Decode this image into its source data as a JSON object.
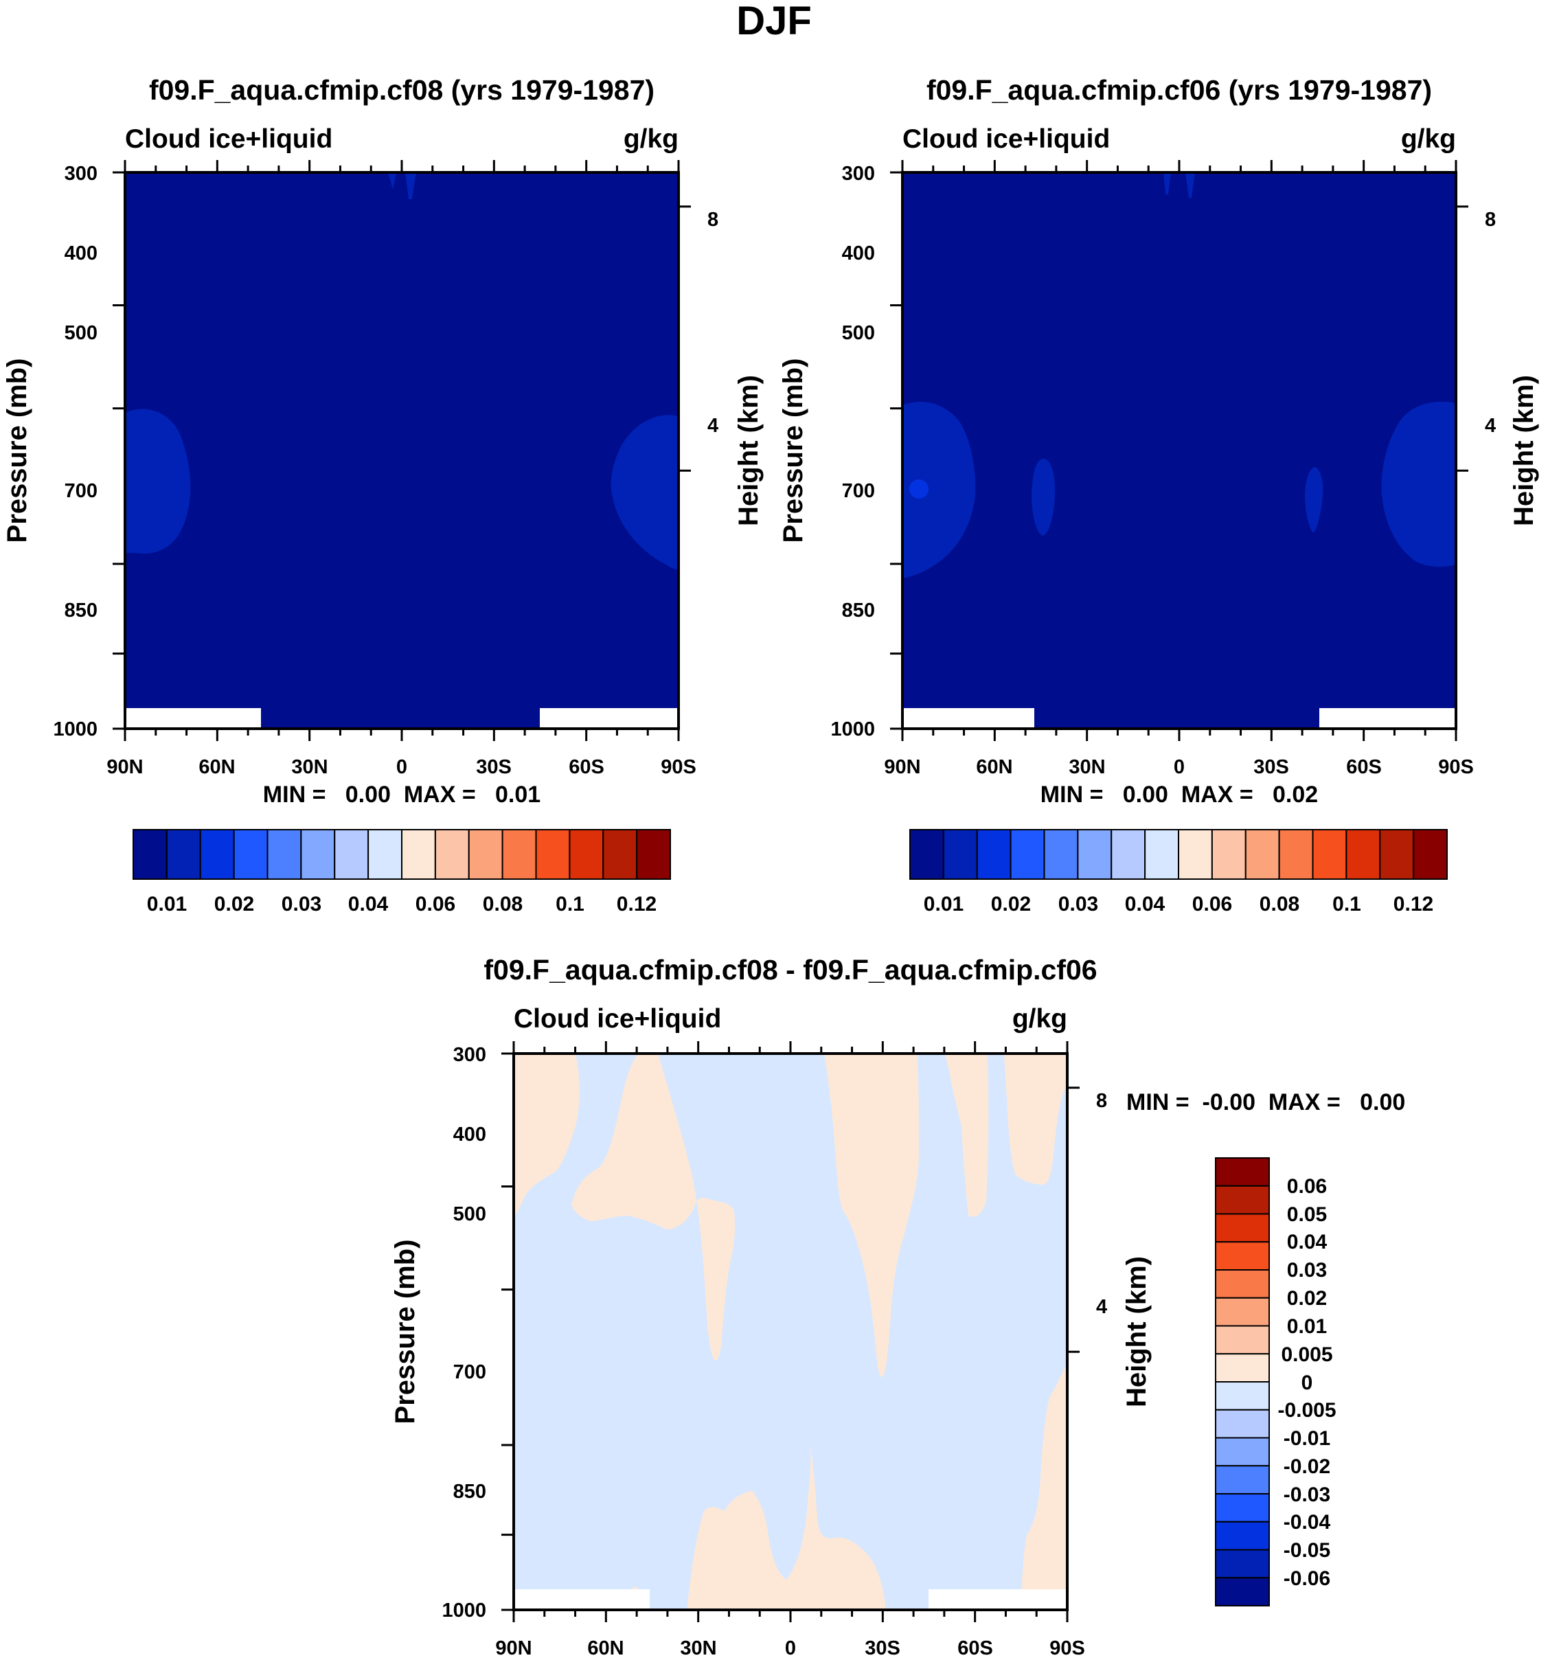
{
  "figure": {
    "title": "DJF"
  },
  "chart_data": [
    {
      "type": "contour",
      "title": "f09.F_aqua.cfmip.cf08 (yrs 1979-1987)",
      "left_string": "Cloud ice+liquid",
      "right_string": "g/kg",
      "ylabel": "Pressure (mb)",
      "ylabel_right": "Height (km)",
      "x_ticks": [
        "90N",
        "60N",
        "30N",
        "0",
        "30S",
        "60S",
        "90S"
      ],
      "y_ticks": [
        "300",
        "400",
        "500",
        "700",
        "850",
        "1000"
      ],
      "y_ticks_right": [
        "8",
        "4"
      ],
      "xlim": [
        -90,
        90
      ],
      "ylim": [
        1000,
        300
      ],
      "min_max": "MIN =   0.00  MAX =   0.01",
      "background_value": 0.005,
      "features": [
        {
          "x": -80,
          "p": 700,
          "value": 0.015
        },
        {
          "x": 80,
          "p": 700,
          "value": 0.015
        }
      ],
      "colorbar_labels": [
        "0.01",
        "0.02",
        "0.03",
        "0.04",
        "0.06",
        "0.08",
        "0.1",
        "0.12"
      ]
    },
    {
      "type": "contour",
      "title": "f09.F_aqua.cfmip.cf06 (yrs 1979-1987)",
      "left_string": "Cloud ice+liquid",
      "right_string": "g/kg",
      "ylabel": "Pressure (mb)",
      "ylabel_right": "Height (km)",
      "x_ticks": [
        "90N",
        "60N",
        "30N",
        "0",
        "30S",
        "60S",
        "90S"
      ],
      "y_ticks": [
        "300",
        "400",
        "500",
        "700",
        "850",
        "1000"
      ],
      "y_ticks_right": [
        "8",
        "4"
      ],
      "xlim": [
        -90,
        90
      ],
      "ylim": [
        1000,
        300
      ],
      "min_max": "MIN =   0.00  MAX =   0.02",
      "background_value": 0.005,
      "features": [
        {
          "x": -80,
          "p": 700,
          "value": 0.015
        },
        {
          "x": -45,
          "p": 700,
          "value": 0.015
        },
        {
          "x": 44,
          "p": 700,
          "value": 0.015
        },
        {
          "x": 80,
          "p": 700,
          "value": 0.015
        }
      ],
      "colorbar_labels": [
        "0.01",
        "0.02",
        "0.03",
        "0.04",
        "0.06",
        "0.08",
        "0.1",
        "0.12"
      ]
    },
    {
      "type": "contour",
      "title": "f09.F_aqua.cfmip.cf08 - f09.F_aqua.cfmip.cf06",
      "left_string": "Cloud ice+liquid",
      "right_string": "g/kg",
      "ylabel": "Pressure (mb)",
      "ylabel_right": "Height (km)",
      "x_ticks": [
        "90N",
        "60N",
        "30N",
        "0",
        "30S",
        "60S",
        "90S"
      ],
      "y_ticks": [
        "300",
        "400",
        "500",
        "700",
        "850",
        "1000"
      ],
      "y_ticks_right": [
        "8",
        "4"
      ],
      "xlim": [
        -90,
        90
      ],
      "ylim": [
        1000,
        300
      ],
      "min_max": "MIN =  -0.00  MAX =   0.00",
      "background_value": -0.0025,
      "colorbar_labels": [
        "0.06",
        "0.05",
        "0.04",
        "0.03",
        "0.02",
        "0.01",
        "0.005",
        "0",
        "-0.005",
        "-0.01",
        "-0.02",
        "-0.03",
        "-0.04",
        "-0.05",
        "-0.06"
      ]
    }
  ],
  "colors": {
    "seq_palette": [
      "#000d8c",
      "#0122b5",
      "#0333e0",
      "#1f58ff",
      "#4d80ff",
      "#83a8ff",
      "#b6caff",
      "#d6e7ff",
      "#fde8d8",
      "#fcc5a9",
      "#fba47c",
      "#f97a48",
      "#f6501e",
      "#dd2f08",
      "#b41e05",
      "#880000"
    ],
    "diff_palette_top_to_bottom": [
      "#880000",
      "#b41e05",
      "#dd2f08",
      "#f6501e",
      "#f97a48",
      "#fba47c",
      "#fcc5a9",
      "#fde8d8",
      "#d6e7ff",
      "#b6caff",
      "#83a8ff",
      "#4d80ff",
      "#1f58ff",
      "#0333e0",
      "#0122b5",
      "#000d8c"
    ],
    "panel_background": "#000d8c",
    "blob": "#0122b5",
    "blob_core": "#0333e0",
    "diff_negative": "#d6e7ff",
    "diff_positive": "#fde8d8",
    "missing": "#ffffff"
  }
}
